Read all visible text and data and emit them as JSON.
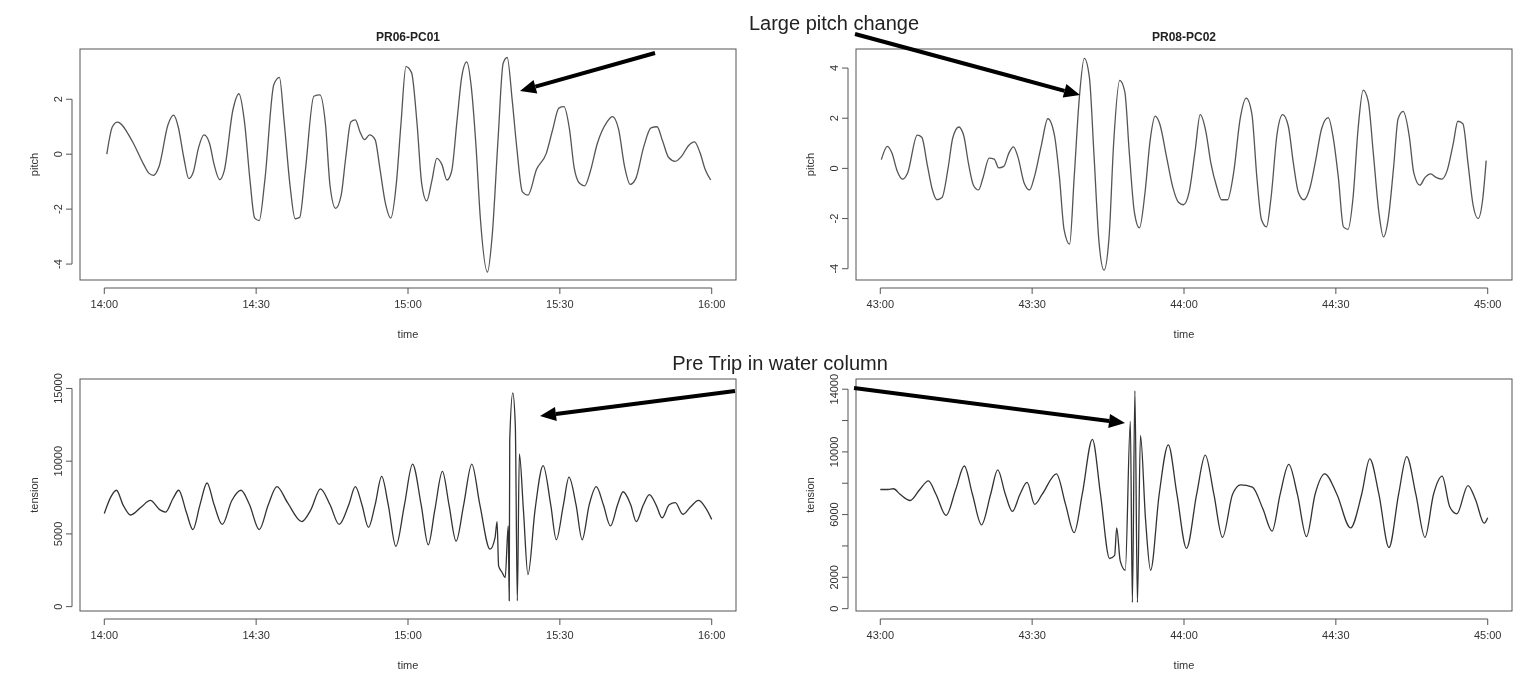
{
  "chart_data": [
    {
      "type": "line",
      "title": "PR06-PC01",
      "xlabel": "time",
      "ylabel": "pitch",
      "color": "#555555",
      "annotations": [
        "Large pitch change"
      ],
      "xlim": [
        835.2,
        964.8
      ],
      "ylim": [
        -4.58,
        3.83
      ],
      "xticks": [
        {
          "value": 840,
          "label": "14:00"
        },
        {
          "value": 870,
          "label": "14:30"
        },
        {
          "value": 900,
          "label": "15:00"
        },
        {
          "value": 930,
          "label": "15:30"
        },
        {
          "value": 960,
          "label": "16:00"
        }
      ],
      "yticks": [
        -4,
        -2,
        0,
        2
      ],
      "x": [
        840.5,
        841.6,
        842.6,
        845.5,
        847.8,
        848.8,
        849.7,
        850.8,
        852.6,
        853.7,
        854.6,
        855.7,
        856.7,
        857.6,
        858.6,
        859.7,
        860.8,
        861.7,
        862.8,
        863.7,
        865.4,
        866.6,
        867.7,
        868.8,
        869.7,
        870.6,
        871.7,
        873.5,
        874.6,
        875.5,
        876.7,
        877.7,
        878.6,
        879.7,
        881.4,
        882.6,
        883.7,
        884.6,
        885.7,
        886.8,
        887.7,
        888.7,
        889.6,
        890.5,
        891.4,
        892.4,
        893.5,
        894.4,
        895.5,
        896.6,
        897.7,
        898.6,
        899.6,
        900.7,
        901.8,
        902.7,
        903.7,
        904.7,
        905.7,
        906.7,
        907.7,
        908.6,
        909.7,
        910.6,
        911.6,
        912.5,
        913.4,
        914.3,
        915.7,
        916.6,
        917.8,
        918.8,
        919.6,
        920.6,
        921.5,
        922.6,
        923.7,
        925.4,
        927.3,
        928.6,
        929.8,
        930.8,
        931.9,
        932.8,
        933.9,
        934.9,
        936.0,
        937.4,
        939.3,
        940.4,
        941.6,
        942.8,
        943.9,
        945.0,
        946.5,
        948.0,
        949.2,
        950.3,
        951.5,
        952.8,
        954.0,
        955.4,
        956.6,
        957.7,
        958.7,
        959.8
      ],
      "values": [
        0.0,
        1.0,
        1.17,
        0.48,
        -0.38,
        -0.69,
        -0.77,
        -0.46,
        1.08,
        1.42,
        1.0,
        -0.12,
        -0.89,
        -0.64,
        0.22,
        0.7,
        0.39,
        -0.38,
        -0.93,
        -0.6,
        1.6,
        2.2,
        1.17,
        -0.98,
        -2.32,
        -2.42,
        -0.98,
        2.54,
        2.8,
        1.25,
        -1.15,
        -2.35,
        -2.3,
        -0.64,
        2.11,
        2.16,
        1.08,
        -1.15,
        -1.97,
        -1.49,
        -0.12,
        1.17,
        1.25,
        0.82,
        0.53,
        0.7,
        0.53,
        -0.46,
        -1.75,
        -2.32,
        -1.06,
        1.08,
        3.19,
        2.97,
        1.08,
        -1.06,
        -1.7,
        -0.98,
        -0.15,
        -0.38,
        -0.94,
        -0.64,
        1.25,
        2.8,
        3.36,
        2.45,
        0.39,
        -2.35,
        -4.29,
        -3.04,
        0.57,
        3.31,
        3.52,
        1.94,
        0.22,
        -1.37,
        -1.49,
        -0.55,
        0.02,
        0.91,
        1.68,
        1.73,
        0.91,
        -0.46,
        -1.06,
        -1.15,
        -0.64,
        0.39,
        1.17,
        1.37,
        0.91,
        -0.46,
        -1.1,
        -0.89,
        0.22,
        0.96,
        1.0,
        0.48,
        -0.12,
        -0.26,
        -0.09,
        0.31,
        0.45,
        0.05,
        -0.55,
        -0.94
      ]
    },
    {
      "type": "line",
      "title": "PR08-PC02",
      "xlabel": "time",
      "ylabel": "pitch",
      "color": "#555555",
      "xlim": [
        2575.2,
        2704.8
      ],
      "ylim": [
        -4.45,
        4.76
      ],
      "xticks": [
        {
          "value": 2580,
          "label": "43:00"
        },
        {
          "value": 2610,
          "label": "43:30"
        },
        {
          "value": 2640,
          "label": "44:00"
        },
        {
          "value": 2670,
          "label": "44:30"
        },
        {
          "value": 2700,
          "label": "45:00"
        }
      ],
      "yticks": [
        -4,
        -2,
        0,
        2,
        4
      ],
      "x": [
        2580.2,
        2581.4,
        2582.3,
        2583.3,
        2584.4,
        2585.4,
        2587.3,
        2588.2,
        2589.3,
        2590.3,
        2591.2,
        2592.2,
        2593.4,
        2594.3,
        2595.5,
        2596.5,
        2597.4,
        2598.4,
        2599.4,
        2600.3,
        2601.5,
        2602.5,
        2603.4,
        2604.4,
        2605.4,
        2606.3,
        2607.2,
        2608.4,
        2609.5,
        2610.4,
        2611.8,
        2613.1,
        2614.4,
        2615.4,
        2616.3,
        2617.4,
        2618.3,
        2619.3,
        2620.3,
        2621.3,
        2622.2,
        2623.2,
        2624.2,
        2625.2,
        2626.1,
        2627.3,
        2628.3,
        2629.2,
        2630.2,
        2631.2,
        2632.3,
        2633.3,
        2634.3,
        2635.2,
        2636.6,
        2637.8,
        2638.9,
        2639.9,
        2641.0,
        2642.2,
        2643.2,
        2644.3,
        2645.3,
        2646.5,
        2647.4,
        2648.6,
        2649.8,
        2651.1,
        2652.3,
        2653.4,
        2654.4,
        2655.3,
        2656.3,
        2657.2,
        2658.4,
        2659.5,
        2660.6,
        2661.6,
        2662.6,
        2663.7,
        2664.9,
        2666.0,
        2667.2,
        2668.5,
        2669.5,
        2670.5,
        2671.5,
        2672.4,
        2673.4,
        2674.4,
        2675.4,
        2676.4,
        2677.4,
        2678.5,
        2679.4,
        2680.4,
        2681.4,
        2682.3,
        2683.3,
        2684.5,
        2685.4,
        2686.6,
        2687.6,
        2688.7,
        2689.9,
        2690.9,
        2692.0,
        2693.2,
        2694.1,
        2695.1,
        2696.1,
        2697.1,
        2698.1,
        2699.0,
        2699.7
      ],
      "values": [
        0.35,
        0.88,
        0.61,
        -0.08,
        -0.43,
        -0.18,
        1.33,
        1.24,
        0.12,
        -0.86,
        -1.25,
        -1.16,
        0.02,
        1.2,
        1.65,
        1.29,
        0.22,
        -0.67,
        -0.86,
        -0.37,
        0.41,
        0.37,
        0.02,
        0.08,
        0.61,
        0.86,
        0.45,
        -0.57,
        -0.86,
        -0.37,
        0.9,
        1.98,
        1.33,
        -0.37,
        -2.43,
        -3.02,
        -0.37,
        2.76,
        4.39,
        3.65,
        0.61,
        -2.92,
        -4.06,
        -2.73,
        1.0,
        3.51,
        3.06,
        0.61,
        -1.75,
        -2.37,
        -0.96,
        1.1,
        2.08,
        1.78,
        0.41,
        -0.76,
        -1.35,
        -1.45,
        -0.96,
        0.71,
        2.14,
        1.49,
        0.22,
        -0.76,
        -1.25,
        -1.25,
        -0.18,
        1.98,
        2.8,
        2.18,
        -0.37,
        -2.04,
        -2.33,
        -1.16,
        1.39,
        2.14,
        1.69,
        0.22,
        -0.96,
        -1.25,
        -0.76,
        0.31,
        1.59,
        2.02,
        1.2,
        -0.37,
        -2.33,
        -2.43,
        -1.16,
        1.59,
        3.12,
        2.67,
        0.61,
        -1.75,
        -2.73,
        -1.94,
        0.02,
        1.98,
        2.27,
        1.29,
        -0.18,
        -0.67,
        -0.37,
        -0.22,
        -0.37,
        -0.43,
        -0.08,
        1.0,
        1.88,
        1.78,
        0.22,
        -1.45,
        -2.0,
        -1.25,
        0.31
      ]
    },
    {
      "type": "line",
      "xlabel": "time",
      "ylabel": "tension",
      "color": "#333333",
      "annotations": [
        "Pre Trip in water column"
      ],
      "xlim": [
        835.2,
        964.8
      ],
      "ylim": [
        -300,
        15650
      ],
      "xticks": [
        {
          "value": 840,
          "label": "14:00"
        },
        {
          "value": 870,
          "label": "14:30"
        },
        {
          "value": 900,
          "label": "15:00"
        },
        {
          "value": 930,
          "label": "15:30"
        },
        {
          "value": 960,
          "label": "16:00"
        }
      ],
      "yticks": [
        0,
        5000,
        10000,
        15000
      ],
      "x": [
        840,
        841.3,
        842.4,
        843.7,
        845.2,
        847.3,
        849.1,
        851.0,
        852.1,
        853.6,
        854.7,
        856.2,
        857.5,
        858.9,
        860.3,
        861.7,
        863.3,
        865.2,
        867.0,
        868.7,
        870.6,
        872.4,
        874.1,
        876.2,
        879.0,
        880.8,
        882.7,
        884.6,
        886.4,
        888.3,
        889.6,
        890.9,
        892.2,
        893.5,
        894.8,
        896.1,
        897.6,
        899.3,
        900.9,
        902.6,
        904.0,
        905.3,
        906.8,
        908.1,
        909.5,
        911.0,
        912.6,
        914.2,
        916.2,
        917.2,
        917.6,
        917.9,
        918.6,
        919.2,
        919.8,
        920.0,
        920.1,
        920.7,
        921.2,
        921.6,
        922.0,
        922.8,
        923.7,
        925.1,
        926.7,
        928.2,
        929.3,
        930.7,
        931.8,
        933.2,
        934.4,
        935.8,
        937.2,
        938.6,
        940.0,
        941.4,
        942.5,
        944.0,
        945.1,
        946.5,
        947.7,
        949.0,
        950.2,
        951.6,
        952.8,
        954.3,
        955.8,
        957.4,
        958.6,
        960.0
      ],
      "values": [
        6400,
        7550,
        8000,
        7000,
        6300,
        6850,
        7300,
        6650,
        6500,
        7450,
        8000,
        6500,
        5300,
        7000,
        8500,
        7000,
        5650,
        7300,
        8000,
        7000,
        5300,
        7000,
        8250,
        7150,
        5850,
        6650,
        8100,
        7000,
        5650,
        7000,
        8250,
        7000,
        5450,
        7000,
        8950,
        7000,
        4150,
        7000,
        9800,
        7000,
        4250,
        6650,
        9300,
        7000,
        4500,
        7000,
        9800,
        7000,
        3950,
        4750,
        5850,
        2800,
        2350,
        2000,
        5550,
        400,
        11450,
        14700,
        12450,
        400,
        10500,
        6650,
        2200,
        6650,
        9700,
        7000,
        4600,
        7000,
        8900,
        7000,
        4600,
        7000,
        8250,
        7000,
        5550,
        7000,
        7900,
        7000,
        5850,
        7000,
        7700,
        7000,
        6100,
        7000,
        7150,
        6350,
        6850,
        7300,
        6900,
        6000
      ]
    },
    {
      "type": "line",
      "xlabel": "time",
      "ylabel": "tension",
      "color": "#333333",
      "xlim": [
        2575.2,
        2704.8
      ],
      "ylim": [
        -150,
        14650
      ],
      "xticks": [
        {
          "value": 2580,
          "label": "43:00"
        },
        {
          "value": 2610,
          "label": "43:30"
        },
        {
          "value": 2640,
          "label": "44:00"
        },
        {
          "value": 2670,
          "label": "44:30"
        },
        {
          "value": 2700,
          "label": "45:00"
        }
      ],
      "yticks": [
        0,
        2000,
        {
          "value": 4000,
          "label": null
        },
        6000,
        {
          "value": 8000,
          "label": null
        },
        10000,
        {
          "value": 12000,
          "label": null
        },
        14000
      ],
      "x": [
        2580,
        2581.5,
        2582.6,
        2583.9,
        2585.9,
        2587.8,
        2589.5,
        2591.0,
        2593.0,
        2594.9,
        2596.6,
        2598.2,
        2600.0,
        2601.8,
        2603.2,
        2604.7,
        2606.1,
        2607.6,
        2609.0,
        2610.5,
        2612.0,
        2614.8,
        2616.6,
        2618.3,
        2619.9,
        2621.9,
        2623.5,
        2625.3,
        2626.3,
        2626.7,
        2627.4,
        2628.4,
        2629.4,
        2629.8,
        2630.3,
        2630.8,
        2631.4,
        2632.4,
        2633.4,
        2635.1,
        2636.9,
        2638.6,
        2640.5,
        2642.5,
        2644.2,
        2645.9,
        2647.6,
        2649.6,
        2651.2,
        2653.5,
        2655.6,
        2657.4,
        2659.0,
        2660.7,
        2662.4,
        2664.2,
        2665.9,
        2667.8,
        2670.2,
        2672.9,
        2675.1,
        2676.7,
        2678.5,
        2680.5,
        2682.4,
        2684.0,
        2685.8,
        2687.6,
        2689.3,
        2691.0,
        2692.5,
        2693.9,
        2696.1,
        2697.6,
        2699.3,
        2700
      ],
      "values": [
        7600,
        7600,
        7650,
        7300,
        6900,
        7600,
        8150,
        7300,
        5950,
        7600,
        9100,
        7300,
        5350,
        7300,
        8850,
        7300,
        6200,
        7300,
        8050,
        6650,
        7300,
        8600,
        6650,
        4850,
        7300,
        10800,
        7300,
        3200,
        3400,
        5150,
        3050,
        2450,
        11950,
        400,
        13900,
        400,
        11050,
        5700,
        2450,
        7300,
        10450,
        7300,
        3850,
        7300,
        9800,
        7300,
        4550,
        7300,
        7900,
        7750,
        6350,
        4950,
        7300,
        9200,
        7300,
        4600,
        7300,
        8600,
        7300,
        5150,
        7300,
        9550,
        7300,
        3900,
        7300,
        9700,
        7300,
        4550,
        7300,
        8450,
        6500,
        6050,
        7850,
        6950,
        5450,
        5800
      ]
    }
  ]
}
